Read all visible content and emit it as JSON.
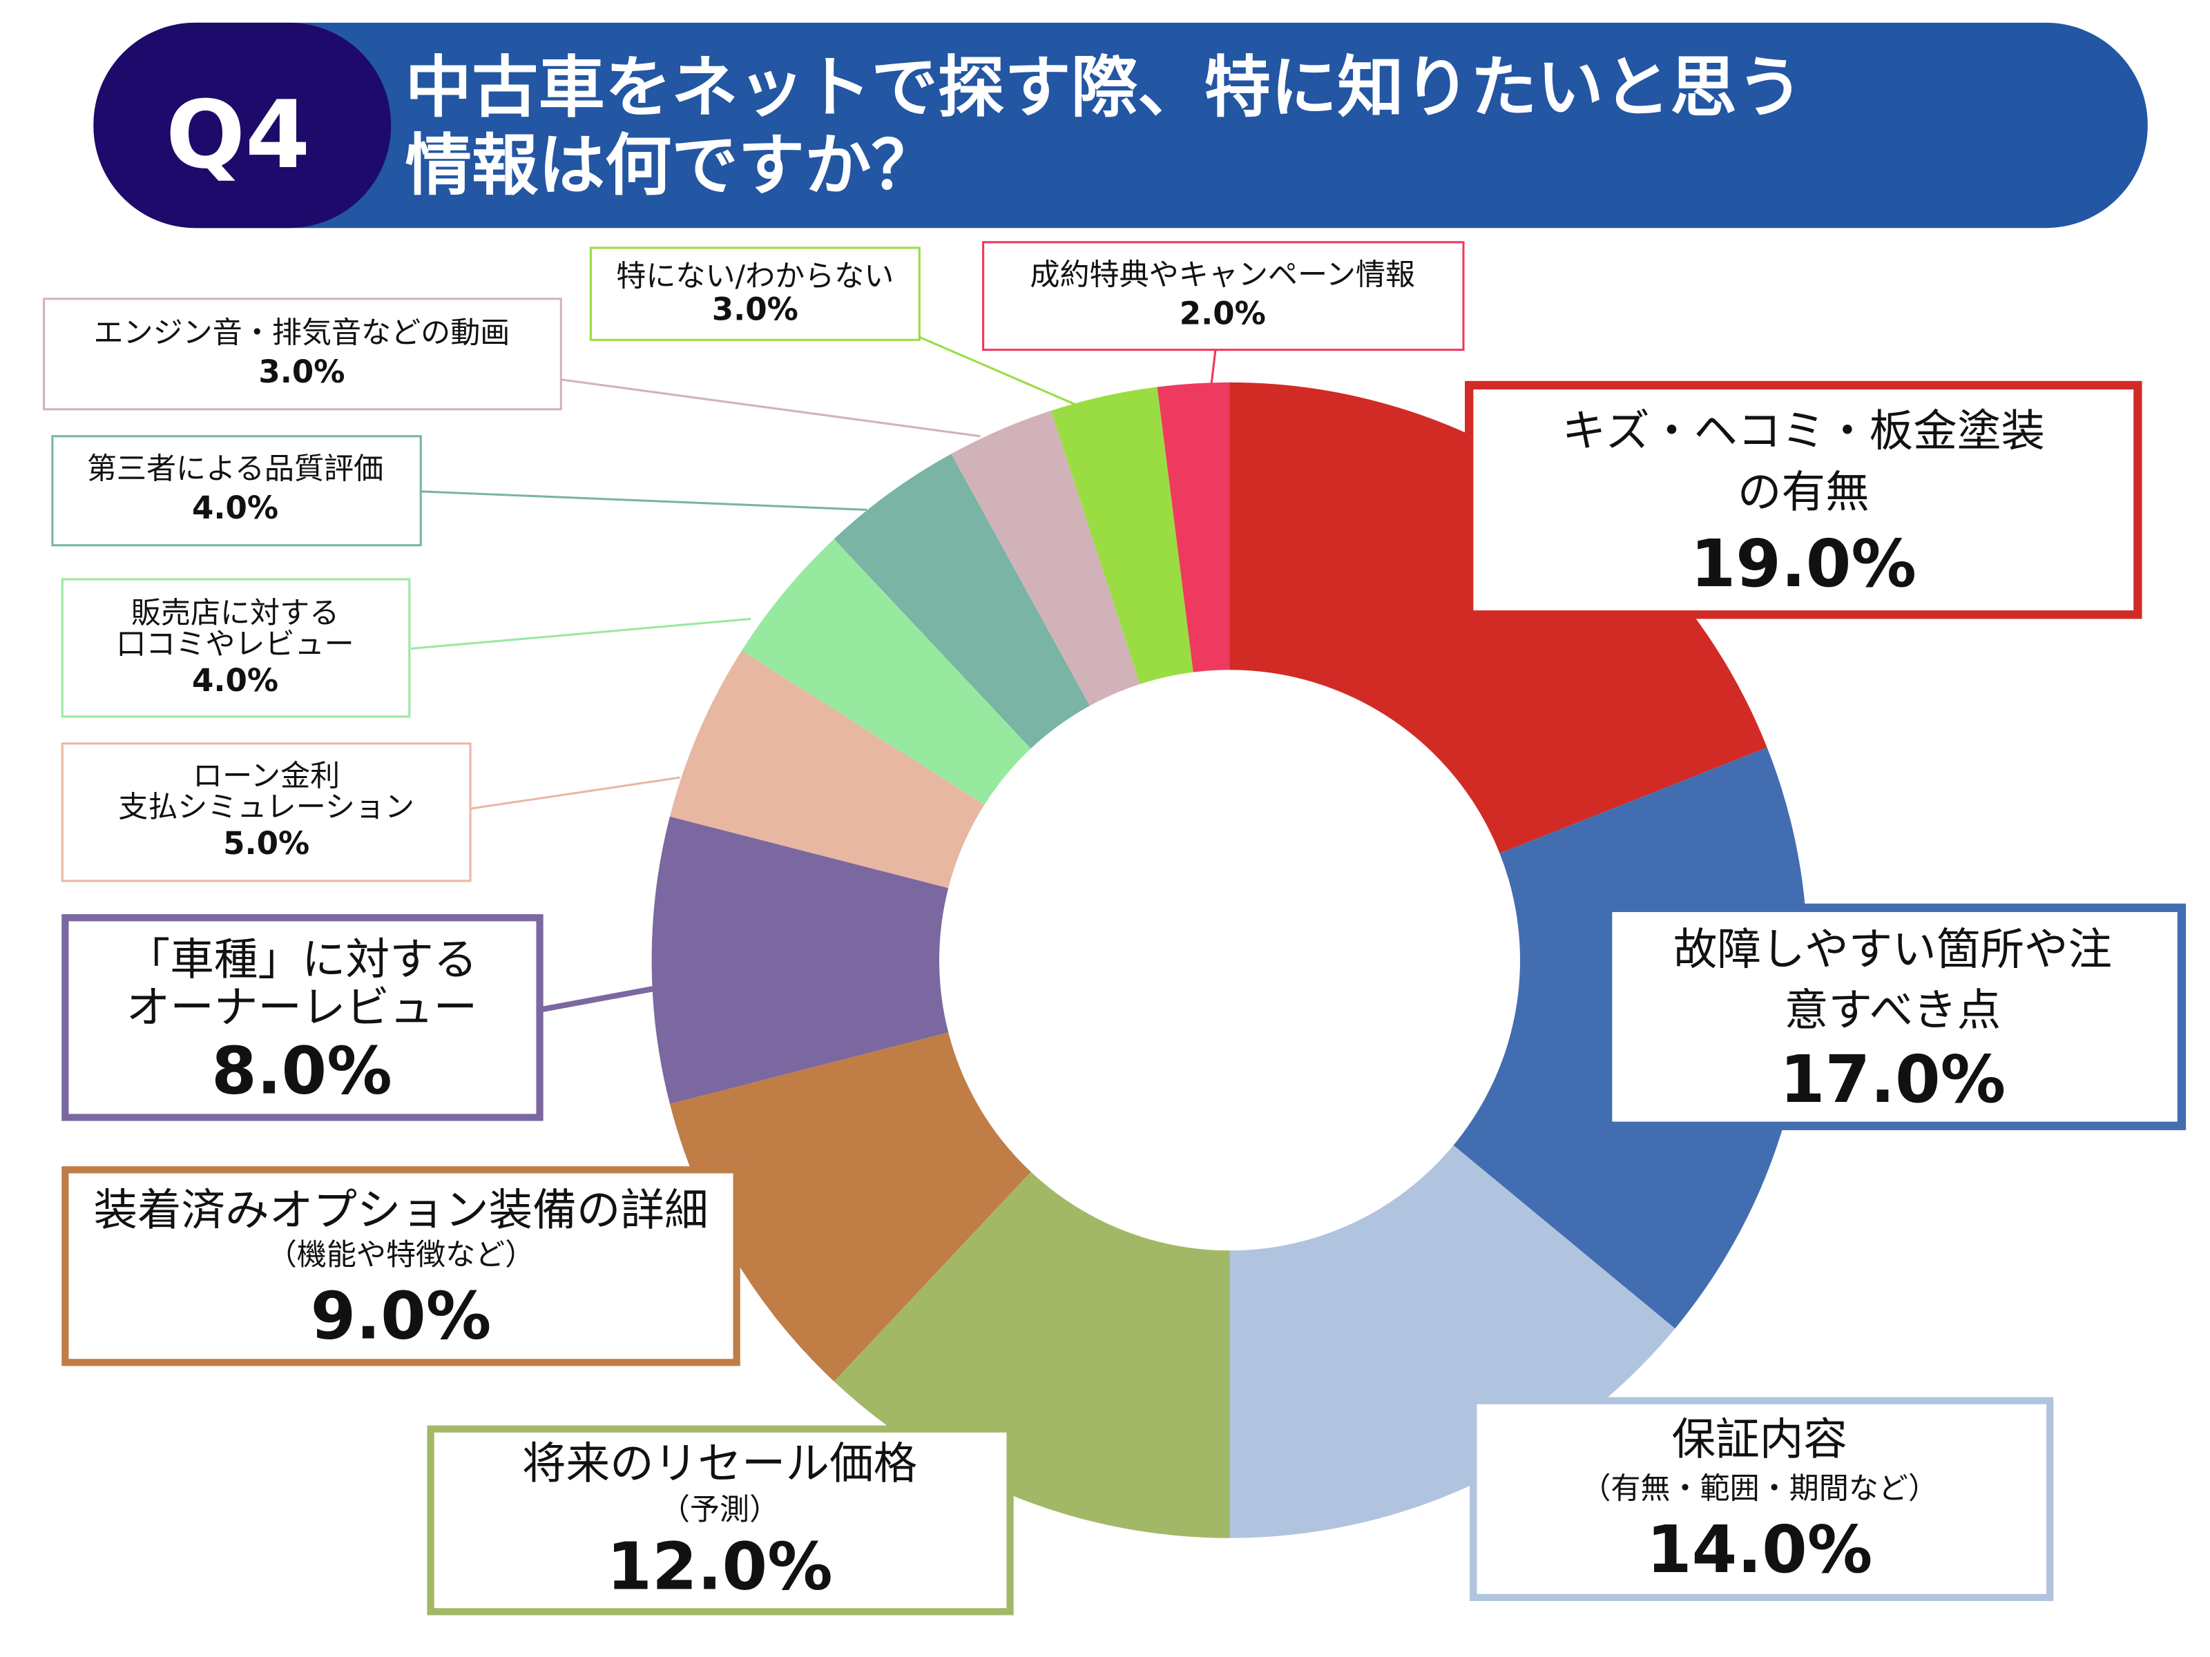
{
  "header": {
    "badge": "Q4",
    "title_line1": "中古車をネットで探す際、特に知りたいと思う",
    "title_line2": "情報は何ですか？",
    "badge_color": "#1E0A6A",
    "bar_color": "#2356A3"
  },
  "chart_data": {
    "type": "pie",
    "variant": "donut",
    "start": "top, clockwise",
    "unit": "%",
    "categories": [
      "キズ・ヘコミ・板金塗装の有無",
      "故障しやすい箇所や注意すべき点",
      "保証内容（有無・範囲・期間など）",
      "将来のリセール価格（予測）",
      "装着済みオプション装備の詳細（機能や特徴など）",
      "「車種」に対するオーナーレビュー",
      "ローン金利支払シミュレーション",
      "販売店に対する口コミやレビュー",
      "第三者による品質評価",
      "エンジン音・排気音などの動画",
      "特にない/わからない",
      "成約特典やキャンペーン情報"
    ],
    "values": [
      19,
      17,
      14,
      12,
      9,
      8,
      5,
      4,
      4,
      3,
      3,
      2
    ],
    "colors": [
      "#D22B26",
      "#426EB1",
      "#B0C4E0",
      "#A3B866",
      "#C07D46",
      "#7B68A0",
      "#E8B7A2",
      "#98E9A0",
      "#79B4A5",
      "#D2B2B9",
      "#9ADD42",
      "#EE3A5E"
    ],
    "labels": [
      {
        "lines": [
          "キズ・ヘコミ・板金塗装",
          "の有無"
        ],
        "value": "19.0%"
      },
      {
        "lines": [
          "故障しやすい箇所や注",
          "意すべき点"
        ],
        "value": "17.0%"
      },
      {
        "lines": [
          "保証内容",
          "（有無・範囲・期間など）"
        ],
        "value": "14.0%"
      },
      {
        "lines": [
          "将来のリセール価格",
          "（予測）"
        ],
        "value": "12.0%"
      },
      {
        "lines": [
          "装着済みオプション装備の詳細",
          "（機能や特徴など）"
        ],
        "value": "9.0%"
      },
      {
        "lines": [
          "「車種」に対する",
          "オーナーレビュー"
        ],
        "value": "8.0%"
      },
      {
        "lines": [
          "ローン金利",
          "支払シミュレーション"
        ],
        "value": "5.0%"
      },
      {
        "lines": [
          "販売店に対する",
          "口コミやレビュー"
        ],
        "value": "4.0%"
      },
      {
        "lines": [
          "第三者による品質評価"
        ],
        "value": "4.0%"
      },
      {
        "lines": [
          "エンジン音・排気音などの動画"
        ],
        "value": "3.0%"
      },
      {
        "lines": [
          "特にない/わからない"
        ],
        "value": "3.0%"
      },
      {
        "lines": [
          "成約特典やキャンペーン情報"
        ],
        "value": "2.0%"
      }
    ]
  }
}
